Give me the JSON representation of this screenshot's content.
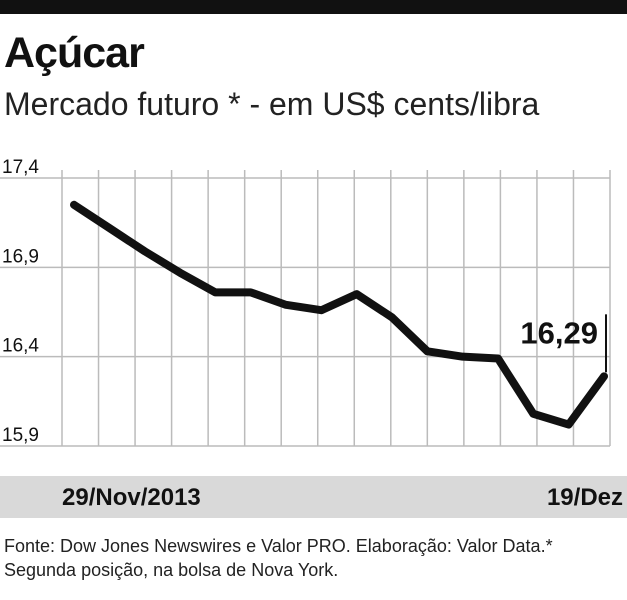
{
  "header": {
    "title": "Açúcar",
    "subtitle": "Mercado futuro * - em US$ cents/libra"
  },
  "footer": {
    "note": "Fonte: Dow Jones Newswires e Valor PRO. Elaboração: Valor Data.* Segunda posição, na bolsa de Nova York."
  },
  "colors": {
    "line": "#111111",
    "grid": "#bbbbbb",
    "axis_band": "#d9d9d9",
    "top_rule": "#111111"
  },
  "chart_data": {
    "type": "line",
    "title": "Açúcar",
    "subtitle": "Mercado futuro * - em US$ cents/libra",
    "x_start_label": "29/Nov/2013",
    "x_end_label": "19/Dez",
    "y_ticks": [
      "17,4",
      "16,9",
      "16,4",
      "15,9"
    ],
    "ylim": [
      15.9,
      17.4
    ],
    "grid": true,
    "series": [
      {
        "values": [
          17.25,
          17.12,
          16.99,
          16.87,
          16.76,
          16.76,
          16.69,
          16.66,
          16.75,
          16.62,
          16.43,
          16.4,
          16.39,
          16.08,
          16.02,
          16.29
        ]
      }
    ],
    "last_value_label": "16,29"
  }
}
